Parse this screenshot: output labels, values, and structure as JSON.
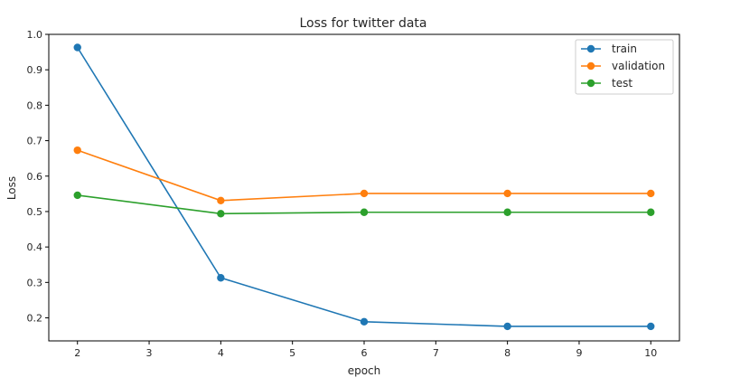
{
  "chart_data": {
    "type": "line",
    "title": "Loss for twitter data",
    "xlabel": "epoch",
    "ylabel": "Loss",
    "x": [
      2,
      4,
      6,
      8,
      10
    ],
    "xlim": [
      1.6,
      10.4
    ],
    "ylim": [
      0.135,
      1.0
    ],
    "xticks": [
      2,
      3,
      4,
      5,
      6,
      7,
      8,
      9,
      10
    ],
    "yticks": [
      0.2,
      0.3,
      0.4,
      0.5,
      0.6,
      0.7,
      0.8,
      0.9,
      1.0
    ],
    "grid": false,
    "legend_position": "top-right",
    "series": [
      {
        "name": "train",
        "color": "#1f77b4",
        "values": [
          0.963,
          0.313,
          0.189,
          0.176,
          0.176
        ]
      },
      {
        "name": "validation",
        "color": "#ff7f0e",
        "values": [
          0.673,
          0.531,
          0.551,
          0.551,
          0.551
        ]
      },
      {
        "name": "test",
        "color": "#2ca02c",
        "values": [
          0.546,
          0.494,
          0.498,
          0.498,
          0.498
        ]
      }
    ]
  }
}
